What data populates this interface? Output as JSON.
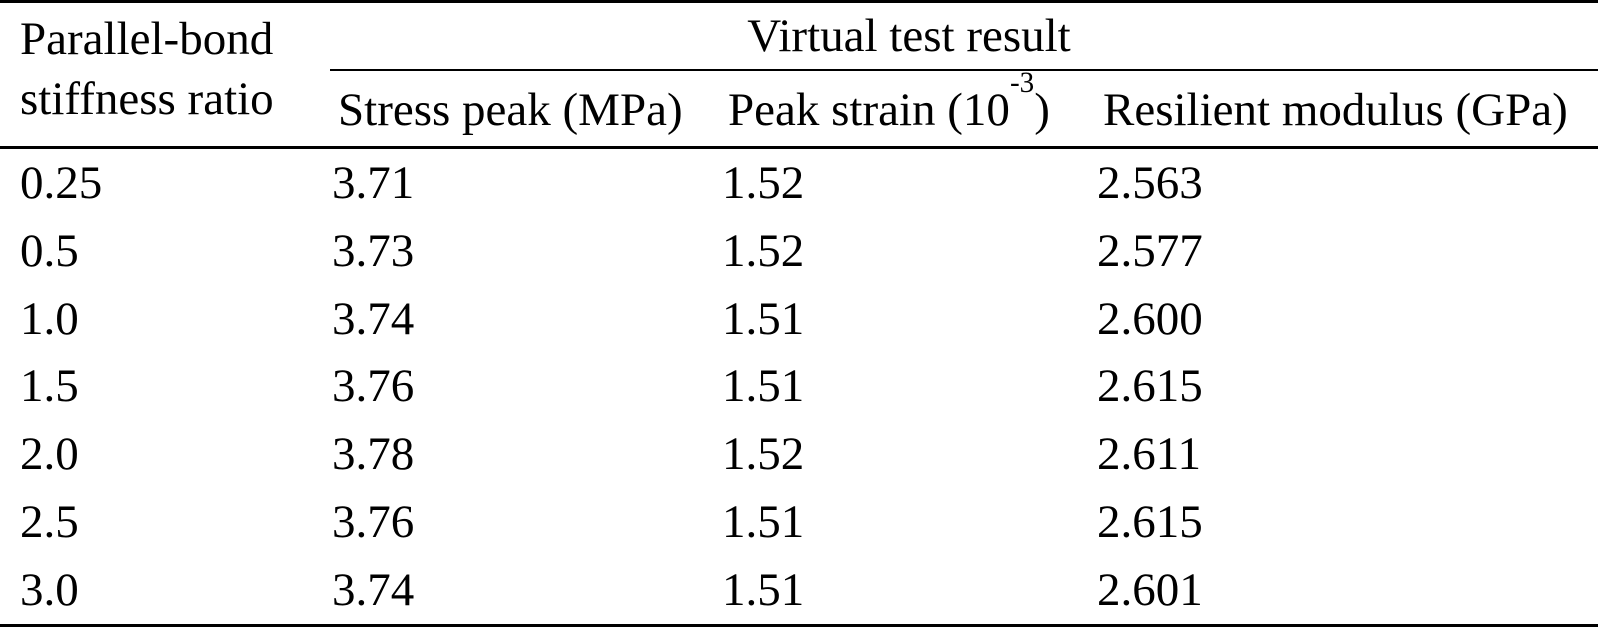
{
  "page": {
    "background": "#ffffff",
    "text_color": "#000000"
  },
  "table": {
    "row_header": "Parallel-bond stiffness ratio",
    "group_header": "Virtual test result",
    "sub_headers": {
      "stress_peak": "Stress peak (MPa)",
      "peak_strain_prefix": "Peak strain (10",
      "peak_strain_sup": "-3",
      "peak_strain_suffix": ")",
      "resilient_modulus": "Resilient modulus (GPa)"
    },
    "rows": [
      [
        "0.25",
        "3.71",
        "1.52",
        "2.563"
      ],
      [
        "0.5",
        "3.73",
        "1.52",
        "2.577"
      ],
      [
        "1.0",
        "3.74",
        "1.51",
        "2.600"
      ],
      [
        "1.5",
        "3.76",
        "1.51",
        "2.615"
      ],
      [
        "2.0",
        "3.78",
        "1.52",
        "2.611"
      ],
      [
        "2.5",
        "3.76",
        "1.51",
        "2.615"
      ],
      [
        "3.0",
        "3.74",
        "1.51",
        "2.601"
      ]
    ]
  },
  "chart_data": {
    "type": "table",
    "title": "",
    "group_header": {
      "label": "Virtual test result",
      "spans": [
        "Stress peak (MPa)",
        "Peak strain (10^-3)",
        "Resilient modulus (GPa)"
      ]
    },
    "columns": [
      "Parallel-bond stiffness ratio",
      "Stress peak (MPa)",
      "Peak strain (10^-3)",
      "Resilient modulus (GPa)"
    ],
    "rows": [
      [
        0.25,
        3.71,
        1.52,
        2.563
      ],
      [
        0.5,
        3.73,
        1.52,
        2.577
      ],
      [
        1.0,
        3.74,
        1.51,
        2.6
      ],
      [
        1.5,
        3.76,
        1.51,
        2.615
      ],
      [
        2.0,
        3.78,
        1.52,
        2.611
      ],
      [
        2.5,
        3.76,
        1.51,
        2.615
      ],
      [
        3.0,
        3.74,
        1.51,
        2.601
      ]
    ]
  }
}
